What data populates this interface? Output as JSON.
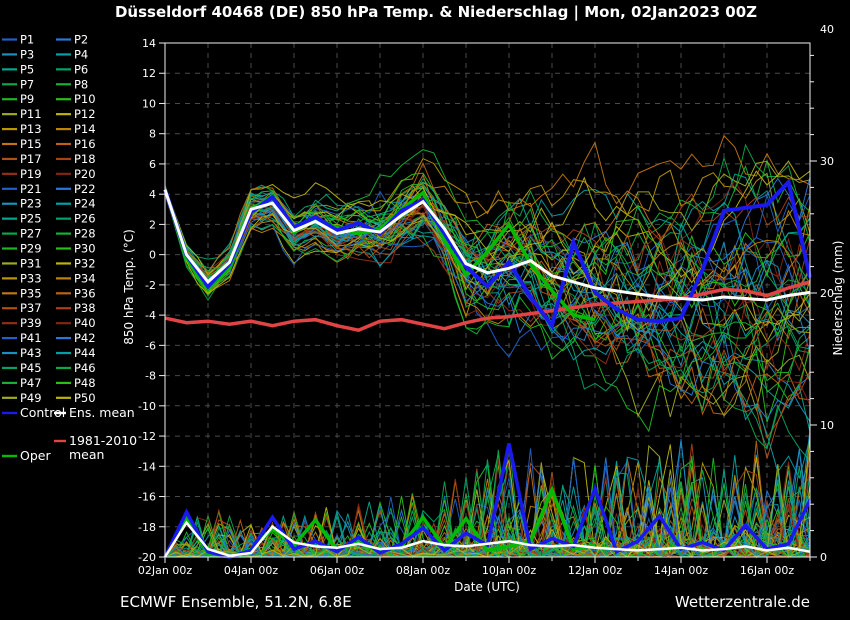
{
  "title": "Düsseldorf 40468 (DE)  850 hPa Temp. & Niederschlag | Mon, 02Jan2023 00Z",
  "footer": {
    "left": "ECMWF Ensemble, 51.2N, 6.8E",
    "right": "Wetterzentrale.de"
  },
  "colors": {
    "background": "#000000",
    "frame": "#f0f0f0",
    "grid": "#4a4a4a",
    "text": "#ffffff",
    "control": "#1a1aee",
    "ens_mean": "#ffffff",
    "clim_mean": "#e04444",
    "oper": "#00bb00"
  },
  "palette20": [
    "#2060c8",
    "#2878d8",
    "#1890c0",
    "#00a0a8",
    "#00a890",
    "#00a468",
    "#0aa84a",
    "#16b034",
    "#1cb824",
    "#28c014",
    "#a0aa1e",
    "#bcb40a",
    "#bc9600",
    "#c08400",
    "#c27410",
    "#bc6212",
    "#b25014",
    "#a84018",
    "#962e16",
    "#842414"
  ],
  "legend": {
    "members": [
      "P1",
      "P2",
      "P3",
      "P4",
      "P5",
      "P6",
      "P7",
      "P8",
      "P9",
      "P10",
      "P11",
      "P12",
      "P13",
      "P14",
      "P15",
      "P16",
      "P17",
      "P18",
      "P19",
      "P20",
      "P21",
      "P22",
      "P23",
      "P24",
      "P25",
      "P26",
      "P27",
      "P28",
      "P29",
      "P30",
      "P31",
      "P32",
      "P33",
      "P34",
      "P35",
      "P36",
      "P37",
      "P38",
      "P39",
      "P40",
      "P41",
      "P42",
      "P43",
      "P44",
      "P45",
      "P46",
      "P47",
      "P48",
      "P49",
      "P50"
    ],
    "control_label": "Control",
    "ens_mean_label": "Ens. mean",
    "clim_label_line1": "1981-2010",
    "clim_label_line2": "mean",
    "oper_label": "Oper"
  },
  "chart_data": {
    "type": "line",
    "title": "Düsseldorf 40468 (DE)  850 hPa Temp. & Niederschlag | Mon, 02Jan2023 00Z",
    "xlabel": "Date (UTC)",
    "ylabel_left": "850 hPa Temp. (°C)",
    "ylabel_right": "Niederschlag (mm)",
    "x_unit": "hours since 02Jan2023 00 UTC",
    "x_range_hours": [
      0,
      360
    ],
    "x_step_hours": 12,
    "xtick_labels": [
      "02Jan 00z",
      "04Jan 00z",
      "06Jan 00z",
      "08Jan 00z",
      "10Jan 00z",
      "12Jan 00z",
      "14Jan 00z",
      "16Jan 00z"
    ],
    "xtick_hours": [
      0,
      48,
      96,
      144,
      192,
      240,
      288,
      336
    ],
    "ylim_left": [
      -20,
      14
    ],
    "ytick_left": [
      14,
      12,
      10,
      8,
      6,
      4,
      2,
      0,
      -2,
      -4,
      -6,
      -8,
      -10,
      -12,
      -14,
      -16,
      -18,
      -20
    ],
    "ylim_right": [
      0,
      40
    ],
    "ytick_right": [
      40,
      30,
      20,
      10,
      0
    ],
    "grid": true,
    "series": {
      "temp_mean": [
        4.3,
        0.0,
        -1.8,
        -0.5,
        3.0,
        3.4,
        1.6,
        2.2,
        1.4,
        1.7,
        1.5,
        2.6,
        3.5,
        1.7,
        -0.6,
        -1.2,
        -0.9,
        -0.4,
        -1.4,
        -1.8,
        -2.2,
        -2.4,
        -2.6,
        -2.8,
        -2.9,
        -3.0,
        -2.8,
        -2.9,
        -3.0,
        -2.7,
        -2.5
      ],
      "temp_control": [
        4.3,
        0.0,
        -2.1,
        -0.6,
        2.8,
        3.8,
        1.8,
        2.5,
        1.6,
        2.1,
        1.4,
        2.9,
        3.6,
        1.4,
        -0.8,
        -2.1,
        -0.5,
        -2.8,
        -4.7,
        0.8,
        -2.5,
        -3.6,
        -4.3,
        -4.4,
        -4.2,
        -1.0,
        2.9,
        3.1,
        3.3,
        4.8,
        -1.5
      ],
      "temp_oper": [
        4.3,
        -0.2,
        -2.3,
        -0.9,
        2.9,
        3.9,
        1.5,
        2.3,
        1.8,
        1.4,
        1.7,
        3.0,
        4.1,
        0.9,
        -1.3,
        0.2,
        2.0,
        -0.6,
        -2.4,
        -4.0,
        -4.3
      ],
      "temp_clim": [
        -4.2,
        -4.5,
        -4.4,
        -4.6,
        -4.4,
        -4.7,
        -4.4,
        -4.3,
        -4.7,
        -5.0,
        -4.4,
        -4.3,
        -4.6,
        -4.9,
        -4.5,
        -4.2,
        -4.1,
        -3.9,
        -3.7,
        -3.5,
        -3.3,
        -3.2,
        -3.1,
        -3.0,
        -2.9,
        -2.6,
        -2.3,
        -2.4,
        -2.7,
        -2.2,
        -1.8
      ],
      "precip_mean": [
        0,
        2.6,
        0.6,
        0.1,
        0.3,
        2.3,
        1.1,
        0.8,
        0.7,
        1.0,
        0.6,
        0.7,
        1.2,
        0.9,
        0.8,
        1.0,
        1.2,
        0.9,
        0.8,
        0.9,
        0.7,
        0.6,
        0.5,
        0.6,
        0.7,
        0.5,
        0.6,
        0.8,
        0.5,
        0.7,
        0.4
      ],
      "precip_control": [
        0,
        3.4,
        0.4,
        0,
        0.5,
        3.0,
        0.6,
        1.2,
        0.4,
        1.5,
        0.3,
        1.0,
        2.2,
        0.5,
        1.8,
        0.9,
        8.6,
        0.6,
        1.4,
        0.8,
        5.2,
        0.4,
        1.2,
        3.1,
        0.6,
        1.1,
        0.5,
        2.4,
        0.6,
        1.0,
        4.3
      ],
      "precip_oper": [
        0,
        2.9,
        0.3,
        0,
        0.6,
        2.1,
        0.9,
        2.8,
        0.5,
        1.1,
        0.4,
        0.8,
        3.0,
        0.7,
        2.9,
        0.5,
        0.8,
        1.2,
        5.1,
        0.6,
        0.9
      ]
    },
    "ensemble": {
      "count": 50,
      "note": "50 perturbed members shown as thin spaghetti; spread grows with lead time",
      "temp_sigma_24h": [
        0.12,
        0.8,
        0.9,
        1.0,
        1.2,
        1.5,
        1.8,
        2.2,
        2.8,
        3.2,
        3.5,
        3.8,
        4.0,
        4.2,
        4.4,
        4.6
      ],
      "precip_max_24h": [
        0.6,
        4.0,
        2.5,
        3.5,
        4.0,
        4.5,
        5.0,
        6.5,
        9.0,
        8.0,
        7.5,
        8.5,
        9.5,
        8.5,
        9.0,
        10.0
      ],
      "seed": 20230102
    }
  }
}
